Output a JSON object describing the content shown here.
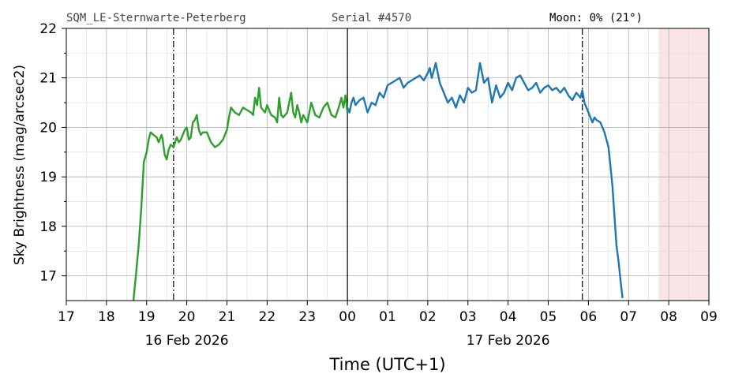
{
  "header": {
    "station": "SQM_LE-Sternwarte-Peterberg",
    "serial": "Serial #4570",
    "moon": "Moon: 0% (21°)"
  },
  "chart_data": {
    "type": "line",
    "xlabel": "Time (UTC+1)",
    "ylabel": "Sky Brightness (mag/arcsec2)",
    "xlim": [
      17,
      33
    ],
    "ylim": [
      16.5,
      22
    ],
    "y_ticks": [
      17,
      18,
      19,
      20,
      21,
      22
    ],
    "x_tick_labels": [
      "17",
      "18",
      "19",
      "20",
      "21",
      "22",
      "23",
      "00",
      "01",
      "02",
      "03",
      "04",
      "05",
      "06",
      "07",
      "08",
      "09"
    ],
    "date_labels": [
      {
        "x": 20,
        "text": "16 Feb 2026"
      },
      {
        "x": 28,
        "text": "17 Feb 2026"
      }
    ],
    "grid": true,
    "midnight_line_x": 24,
    "twilight_lines_x": [
      19.67,
      29.85
    ],
    "moon_shade": {
      "x_from": 31.75,
      "x_to": 33,
      "color": "#f4cccc"
    },
    "series": [
      {
        "color": "#2ca02c",
        "x": [
          18.67,
          18.72,
          18.8,
          18.87,
          18.93,
          19.0,
          19.05,
          19.1,
          19.17,
          19.25,
          19.3,
          19.37,
          19.4,
          19.45,
          19.5,
          19.55,
          19.6,
          19.67,
          19.75,
          19.8,
          19.85,
          19.9,
          19.95,
          20.0,
          20.05,
          20.1,
          20.15,
          20.2,
          20.25,
          20.3,
          20.35,
          20.4,
          20.5,
          20.6,
          20.7,
          20.8,
          20.9,
          21.0,
          21.05,
          21.1,
          21.15,
          21.2,
          21.3,
          21.4,
          21.5,
          21.6,
          21.65,
          21.7,
          21.75,
          21.8,
          21.85,
          21.9,
          21.95,
          22.0,
          22.1,
          22.2,
          22.25,
          22.3,
          22.35,
          22.4,
          22.5,
          22.6,
          22.65,
          22.7,
          22.75,
          22.8,
          22.85,
          22.9,
          23.0,
          23.1,
          23.2,
          23.3,
          23.4,
          23.5,
          23.6,
          23.7,
          23.8,
          23.85,
          23.9,
          23.95,
          24.0
        ],
        "y": [
          16.5,
          16.9,
          17.6,
          18.4,
          19.3,
          19.5,
          19.75,
          19.9,
          19.85,
          19.8,
          19.7,
          19.85,
          19.75,
          19.45,
          19.35,
          19.55,
          19.65,
          19.6,
          19.8,
          19.7,
          19.75,
          19.85,
          19.95,
          20.0,
          19.75,
          19.8,
          20.1,
          20.15,
          20.25,
          19.95,
          19.85,
          19.9,
          19.9,
          19.7,
          19.6,
          19.65,
          19.75,
          19.95,
          20.2,
          20.4,
          20.35,
          20.3,
          20.25,
          20.4,
          20.35,
          20.3,
          20.25,
          20.6,
          20.45,
          20.8,
          20.4,
          20.35,
          20.3,
          20.45,
          20.25,
          20.2,
          20.1,
          20.6,
          20.25,
          20.2,
          20.3,
          20.7,
          20.3,
          20.2,
          20.45,
          20.3,
          20.1,
          20.25,
          20.1,
          20.5,
          20.25,
          20.2,
          20.4,
          20.5,
          20.25,
          20.2,
          20.45,
          20.6,
          20.4,
          20.65,
          20.3
        ]
      },
      {
        "color": "#1f77b4",
        "x": [
          24.0,
          24.05,
          24.1,
          24.15,
          24.2,
          24.3,
          24.4,
          24.5,
          24.6,
          24.7,
          24.8,
          24.9,
          25.0,
          25.1,
          25.2,
          25.3,
          25.4,
          25.5,
          25.6,
          25.7,
          25.8,
          25.9,
          26.0,
          26.05,
          26.1,
          26.2,
          26.3,
          26.4,
          26.5,
          26.6,
          26.7,
          26.8,
          26.9,
          27.0,
          27.1,
          27.2,
          27.3,
          27.4,
          27.5,
          27.6,
          27.7,
          27.8,
          27.9,
          28.0,
          28.1,
          28.2,
          28.3,
          28.4,
          28.5,
          28.6,
          28.7,
          28.8,
          28.9,
          29.0,
          29.1,
          29.2,
          29.3,
          29.4,
          29.5,
          29.6,
          29.7,
          29.8,
          29.85,
          29.9,
          30.0,
          30.1,
          30.15,
          30.2,
          30.3,
          30.4,
          30.5,
          30.55,
          30.6,
          30.65,
          30.7,
          30.75,
          30.8,
          30.85
        ],
        "y": [
          20.4,
          20.3,
          20.5,
          20.6,
          20.45,
          20.55,
          20.6,
          20.3,
          20.5,
          20.45,
          20.7,
          20.6,
          20.85,
          20.9,
          20.95,
          21.0,
          20.8,
          20.9,
          20.95,
          21.0,
          21.05,
          20.95,
          21.1,
          21.2,
          21.0,
          21.3,
          20.9,
          20.7,
          20.5,
          20.6,
          20.4,
          20.65,
          20.5,
          20.8,
          20.7,
          20.75,
          21.3,
          20.9,
          21.0,
          20.5,
          20.85,
          20.6,
          20.7,
          20.9,
          20.75,
          21.0,
          21.05,
          20.9,
          20.75,
          20.8,
          20.9,
          20.7,
          20.8,
          20.85,
          20.75,
          20.8,
          20.7,
          20.8,
          20.65,
          20.55,
          20.7,
          20.6,
          20.75,
          20.5,
          20.3,
          20.1,
          20.2,
          20.15,
          20.1,
          19.9,
          19.6,
          19.2,
          18.8,
          18.2,
          17.6,
          17.3,
          16.9,
          16.55
        ]
      }
    ]
  }
}
